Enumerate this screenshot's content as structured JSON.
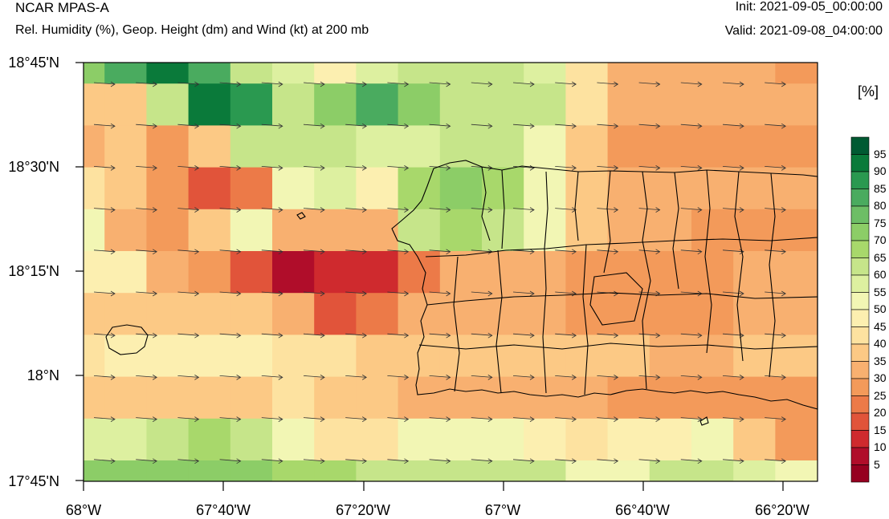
{
  "header": {
    "title": "NCAR MPAS-A",
    "subtitle": "Rel. Humidity (%), Geop. Height (dm) and Wind (kt) at 200 mb",
    "init": "Init: 2021-09-05_00:00:00",
    "valid": "Valid: 2021-09-08_04:00:00"
  },
  "colorbar": {
    "unit": "[%]",
    "labels": [
      "95",
      "90",
      "85",
      "80",
      "75",
      "70",
      "65",
      "60",
      "55",
      "50",
      "45",
      "40",
      "35",
      "30",
      "25",
      "20",
      "15",
      "10",
      "5"
    ],
    "colors": [
      "#005a32",
      "#0a7a3a",
      "#2a9950",
      "#4aab5f",
      "#6dbe66",
      "#8ccd67",
      "#a8d86b",
      "#c6e58a",
      "#ddf0a0",
      "#f2f6b4",
      "#fcefb0",
      "#fde2a0",
      "#fcc985",
      "#f8b070",
      "#f39a5a",
      "#ec7a48",
      "#e1543a",
      "#cf2a2e",
      "#b00d2a",
      "#960020"
    ]
  },
  "axes": {
    "y_ticks": [
      "18°45'N",
      "18°30'N",
      "18°15'N",
      "18°N",
      "17°45'N"
    ],
    "x_ticks": [
      "68°W",
      "67°40'W",
      "67°20'W",
      "67°W",
      "66°40'W",
      "66°20'W"
    ]
  },
  "map": {
    "rh_grid": [
      [
        72,
        82,
        92,
        82,
        62,
        57,
        50,
        60,
        65,
        65,
        62,
        58,
        45,
        35,
        35,
        35,
        35,
        28
      ],
      [
        40,
        40,
        62,
        95,
        88,
        62,
        75,
        85,
        72,
        65,
        65,
        65,
        45,
        35,
        35,
        35,
        35,
        35
      ],
      [
        35,
        40,
        30,
        40,
        65,
        65,
        65,
        60,
        60,
        65,
        65,
        55,
        40,
        30,
        30,
        30,
        30,
        30
      ],
      [
        45,
        40,
        30,
        20,
        25,
        55,
        60,
        50,
        70,
        75,
        70,
        55,
        40,
        35,
        35,
        35,
        35,
        35
      ],
      [
        55,
        35,
        30,
        40,
        55,
        35,
        35,
        35,
        62,
        70,
        65,
        55,
        40,
        35,
        35,
        30,
        30,
        30
      ],
      [
        50,
        50,
        35,
        30,
        20,
        10,
        15,
        15,
        25,
        35,
        35,
        35,
        30,
        30,
        30,
        30,
        35,
        35
      ],
      [
        40,
        40,
        40,
        40,
        40,
        35,
        20,
        25,
        35,
        35,
        35,
        35,
        30,
        30,
        30,
        30,
        35,
        35
      ],
      [
        45,
        50,
        50,
        50,
        50,
        45,
        45,
        40,
        40,
        40,
        40,
        40,
        40,
        40,
        35,
        35,
        40,
        40
      ],
      [
        40,
        40,
        40,
        40,
        40,
        45,
        40,
        40,
        35,
        35,
        35,
        35,
        35,
        30,
        30,
        30,
        30,
        30
      ],
      [
        60,
        60,
        62,
        68,
        62,
        55,
        45,
        45,
        55,
        55,
        55,
        50,
        45,
        50,
        50,
        55,
        40,
        28
      ],
      [
        75,
        75,
        75,
        75,
        72,
        70,
        68,
        62,
        62,
        62,
        62,
        62,
        55,
        52,
        62,
        62,
        60,
        55
      ]
    ]
  }
}
